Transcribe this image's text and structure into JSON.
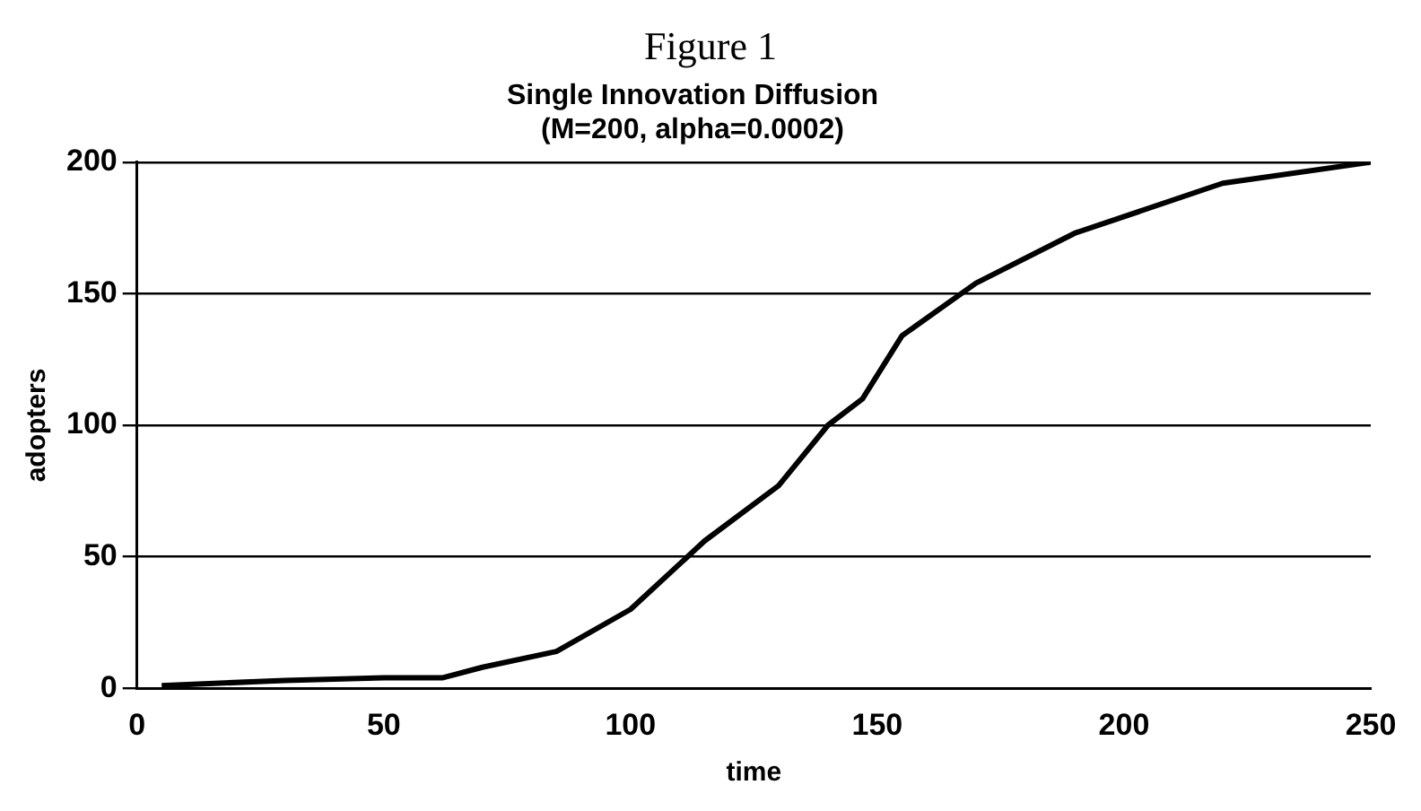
{
  "chart_data": {
    "type": "line",
    "title": "Single Innovation Diffusion",
    "subtitle": "(M=200, alpha=0.0002)",
    "annotations": [
      "Figure 1"
    ],
    "xlabel": "time",
    "ylabel": "adopters",
    "x": [
      5,
      30,
      50,
      62,
      70,
      85,
      100,
      115,
      130,
      140,
      147,
      155,
      170,
      190,
      220,
      250
    ],
    "series": [
      {
        "color": "#000000",
        "values": [
          1,
          3,
          4,
          4,
          8,
          14,
          30,
          56,
          77,
          100,
          110,
          134,
          154,
          173,
          192,
          200
        ]
      }
    ],
    "xlim": [
      0,
      250
    ],
    "xticks": [
      0,
      50,
      100,
      150,
      200,
      250
    ],
    "ylim": [
      0,
      200
    ],
    "yticks": [
      0,
      50,
      100,
      150,
      200
    ],
    "grid": "y",
    "legend": false,
    "marker": "none",
    "line_style": "solid"
  }
}
